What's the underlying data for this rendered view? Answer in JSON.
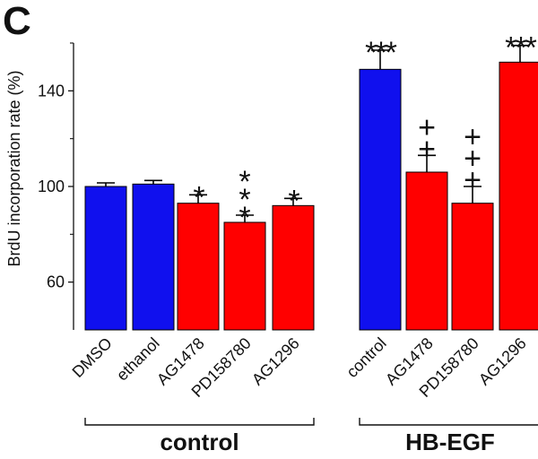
{
  "panel_label": "C",
  "chart_data": {
    "type": "bar",
    "ylabel": "BrdU incorporation rate (%)",
    "xlabel": "",
    "ylim": [
      40,
      160
    ],
    "yticks": [
      60,
      100,
      140
    ],
    "categories": [
      "DMSO",
      "ethanol",
      "AG1478",
      "PD158780",
      "AG1296",
      "control",
      "AG1478",
      "PD158780",
      "AG1296"
    ],
    "values": [
      100,
      101,
      93,
      85,
      92,
      149,
      106,
      93,
      152
    ],
    "errors": [
      1.5,
      1.5,
      3.5,
      3,
      3,
      8,
      7,
      7,
      7
    ],
    "colors": [
      "#1010ee",
      "#1010ee",
      "#ff0000",
      "#ff0000",
      "#ff0000",
      "#1010ee",
      "#ff0000",
      "#ff0000",
      "#ff0000"
    ],
    "significance": [
      "",
      "",
      "*",
      "***",
      "*",
      "***",
      "++",
      "+++",
      "***"
    ],
    "groups": [
      {
        "label": "control",
        "start": 0,
        "end": 4
      },
      {
        "label": "HB-EGF",
        "start": 5,
        "end": 8
      }
    ]
  }
}
